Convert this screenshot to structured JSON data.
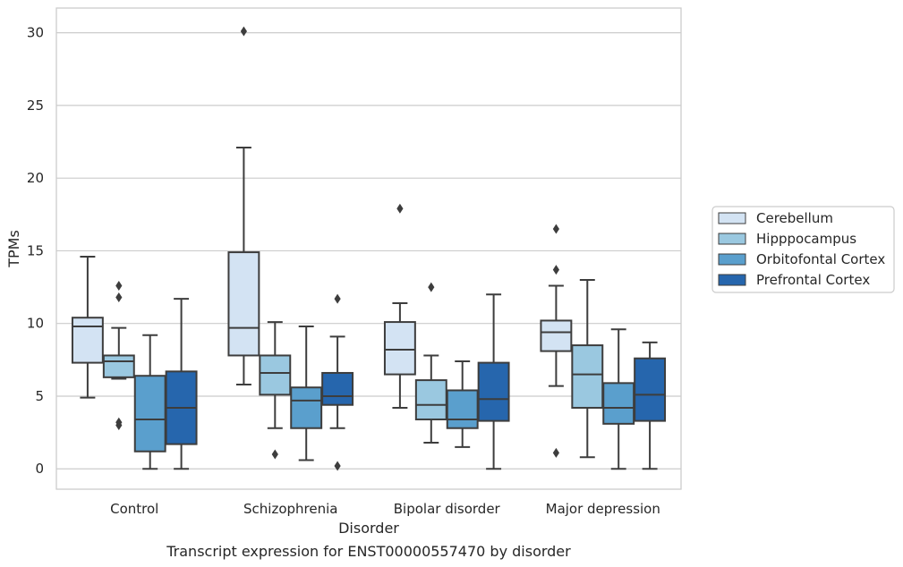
{
  "chart_data": {
    "type": "box",
    "caption": "Transcript expression for ENST00000557470 by disorder",
    "xlabel": "Disorder",
    "ylabel": "TPMs",
    "ylim": [
      -1.4,
      31.7
    ],
    "yticks": [
      0,
      5,
      10,
      15,
      20,
      25,
      30
    ],
    "grid": true,
    "legend_position": "right",
    "categories": [
      "Control",
      "Schizophrenia",
      "Bipolar disorder",
      "Major depression"
    ],
    "series": [
      {
        "name": "Cerebellum",
        "color": "#d3e3f3",
        "boxes": [
          {
            "whislo": 4.9,
            "q1": 7.3,
            "med": 9.8,
            "q3": 10.4,
            "whishi": 14.6,
            "fliers": []
          },
          {
            "whislo": 5.8,
            "q1": 7.8,
            "med": 9.7,
            "q3": 14.9,
            "whishi": 22.1,
            "fliers": [
              30.1
            ]
          },
          {
            "whislo": 4.2,
            "q1": 6.5,
            "med": 8.2,
            "q3": 10.1,
            "whishi": 11.4,
            "fliers": [
              17.9
            ]
          },
          {
            "whislo": 5.7,
            "q1": 8.1,
            "med": 9.4,
            "q3": 10.2,
            "whishi": 12.6,
            "fliers": [
              16.5,
              13.7,
              1.1
            ]
          }
        ]
      },
      {
        "name": "Hipppocampus",
        "color": "#9ac8e0",
        "boxes": [
          {
            "whislo": 6.2,
            "q1": 6.3,
            "med": 7.4,
            "q3": 7.8,
            "whishi": 9.7,
            "fliers": [
              12.6,
              11.8,
              3.2,
              3.0
            ]
          },
          {
            "whislo": 2.8,
            "q1": 5.1,
            "med": 6.6,
            "q3": 7.8,
            "whishi": 10.1,
            "fliers": [
              1.0
            ]
          },
          {
            "whislo": 1.8,
            "q1": 3.4,
            "med": 4.4,
            "q3": 6.1,
            "whishi": 7.8,
            "fliers": [
              12.5
            ]
          },
          {
            "whislo": 0.8,
            "q1": 4.2,
            "med": 6.5,
            "q3": 8.5,
            "whishi": 13.0,
            "fliers": []
          }
        ]
      },
      {
        "name": "Orbitofontal Cortex",
        "color": "#5a9fcd",
        "boxes": [
          {
            "whislo": 0.0,
            "q1": 1.2,
            "med": 3.4,
            "q3": 6.4,
            "whishi": 9.2,
            "fliers": []
          },
          {
            "whislo": 0.6,
            "q1": 2.8,
            "med": 4.7,
            "q3": 5.6,
            "whishi": 9.8,
            "fliers": []
          },
          {
            "whislo": 1.5,
            "q1": 2.8,
            "med": 3.4,
            "q3": 5.4,
            "whishi": 7.4,
            "fliers": []
          },
          {
            "whislo": 0.0,
            "q1": 3.1,
            "med": 4.2,
            "q3": 5.9,
            "whishi": 9.6,
            "fliers": []
          }
        ]
      },
      {
        "name": "Prefrontal Cortex",
        "color": "#2666ad",
        "boxes": [
          {
            "whislo": 0.0,
            "q1": 1.7,
            "med": 4.2,
            "q3": 6.7,
            "whishi": 11.7,
            "fliers": []
          },
          {
            "whislo": 2.8,
            "q1": 4.4,
            "med": 5.0,
            "q3": 6.6,
            "whishi": 9.1,
            "fliers": [
              11.7,
              0.2
            ]
          },
          {
            "whislo": 0.0,
            "q1": 3.3,
            "med": 4.8,
            "q3": 7.3,
            "whishi": 12.0,
            "fliers": []
          },
          {
            "whislo": 0.0,
            "q1": 3.3,
            "med": 5.1,
            "q3": 7.6,
            "whishi": 8.7,
            "fliers": []
          }
        ]
      }
    ]
  }
}
